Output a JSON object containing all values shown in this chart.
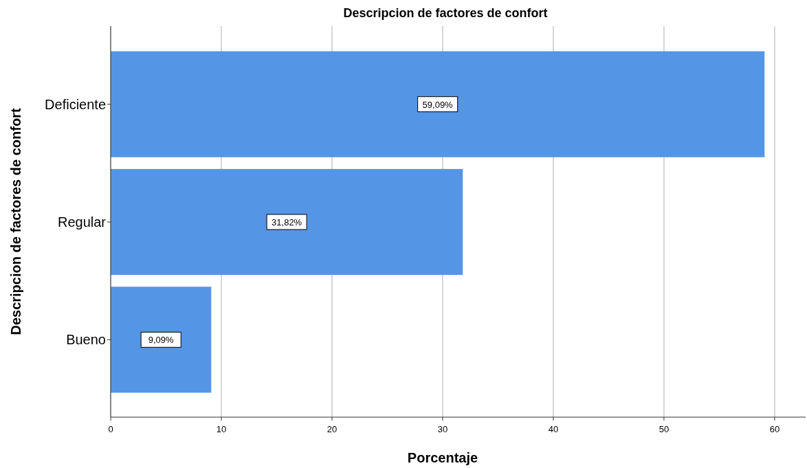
{
  "chart_data": {
    "type": "bar",
    "orientation": "horizontal",
    "title": "Descripcion de factores de confort",
    "xlabel": "Porcentaje",
    "ylabel": "Descripcion de factores de confort",
    "categories": [
      "Deficiente",
      "Regular",
      "Bueno"
    ],
    "values": [
      59.09,
      31.82,
      9.09
    ],
    "value_labels": [
      "59,09%",
      "31,82%",
      "9,09%"
    ],
    "color": "#5595e5",
    "xlim": [
      0,
      62.8
    ],
    "xticks": [
      0,
      10,
      20,
      30,
      40,
      50,
      60
    ],
    "grid": "x"
  }
}
